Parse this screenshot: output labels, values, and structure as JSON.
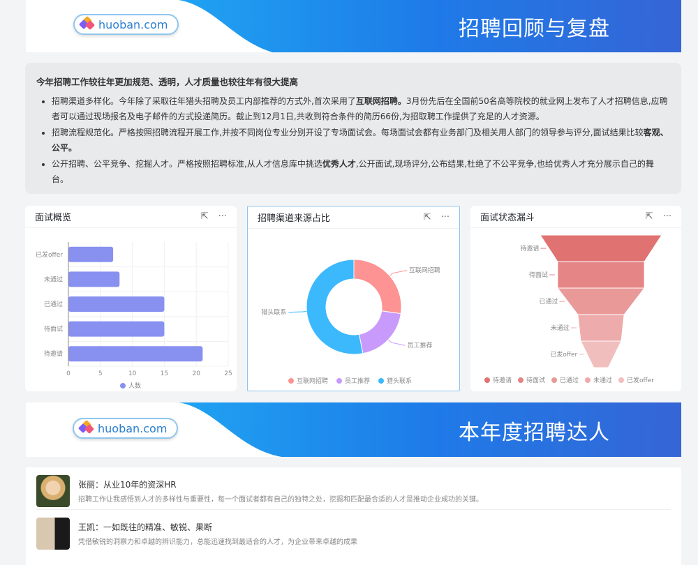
{
  "banner1": {
    "logo": "huoban.com",
    "title": "招聘回顾与复盘"
  },
  "summary": {
    "heading": "今年招聘工作较往年更加规范、透明，人才质量也较往年有很大提高",
    "items": [
      {
        "pre": "招聘渠道多样化。今年除了采取往年猎头招聘及员工内部推荐的方式外,首次采用了",
        "bold": "互联网招聘。",
        "post": "3月份先后在全国前50名高等院校的就业网上发布了人才招聘信息,应聘者可以通过现场报名及电子邮件的方式投递简历。截止到12月1日,共收到符合条件的简历66份,为招取聘工作提供了充足的人才资源。"
      },
      {
        "pre": "招聘流程规范化。严格按照招聘流程开展工作,并按不同岗位专业分别开设了专场面试会。每场面试会都有业务部门及相关用人部门的领导参与评分,面试结果比较",
        "bold": "客观、公平。",
        "post": ""
      },
      {
        "pre": "公开招聘、公平竞争、挖掘人才。严格按照招聘标准,从人才信息库中挑选",
        "bold": "优秀人才",
        "post": ",公开面试,现场评分,公布结果,杜绝了不公平竞争,也给优秀人才充分展示自己的舞台。"
      }
    ]
  },
  "cards": {
    "c1": "面试概览",
    "c2": "招聘渠道来源占比",
    "c3": "面试状态漏斗"
  },
  "chart_data": [
    {
      "type": "bar",
      "orientation": "horizontal",
      "title": "面试概览",
      "categories": [
        "待邀请",
        "待面试",
        "已通过",
        "未通过",
        "已发offer"
      ],
      "series": [
        {
          "name": "人数",
          "values": [
            21,
            15,
            15,
            8,
            7
          ],
          "color": "#8891f0"
        }
      ],
      "xlim": [
        0,
        25
      ],
      "xticks": [
        0,
        5,
        10,
        15,
        20,
        25
      ],
      "grid": true,
      "legend": "bottom"
    },
    {
      "type": "pie",
      "donut": true,
      "title": "招聘渠道来源占比",
      "categories": [
        "互联网招聘",
        "员工推荐",
        "猎头联系"
      ],
      "values": [
        18,
        13,
        35
      ],
      "colors": [
        "#fd9393",
        "#c89afc",
        "#3cb9fc"
      ],
      "legend": "bottom"
    },
    {
      "type": "funnel",
      "title": "面试状态漏斗",
      "categories": [
        "待邀请",
        "待面试",
        "已通过",
        "未通过",
        "已发offer"
      ],
      "values": [
        21,
        15,
        15,
        8,
        7
      ],
      "colors": [
        "#e07272",
        "#e58585",
        "#ea9999",
        "#eeabab",
        "#f1bebe"
      ],
      "legend": "bottom"
    }
  ],
  "banner2": {
    "logo": "huoban.com",
    "title": "本年度招聘达人"
  },
  "people": [
    {
      "name": "张丽：从业10年的资深HR",
      "desc": "招聘工作让我感悟到人才的多样性与重要性，每一个面试者都有自己的独特之处，挖掘和匹配最合适的人才是推动企业成功的关键。"
    },
    {
      "name": "王凯：一如既往的精准、敏锐、果断",
      "desc": "凭借敏锐的洞察力和卓越的辨识能力，总能迅速找到最适合的人才，为企业带来卓越的成果"
    }
  ]
}
